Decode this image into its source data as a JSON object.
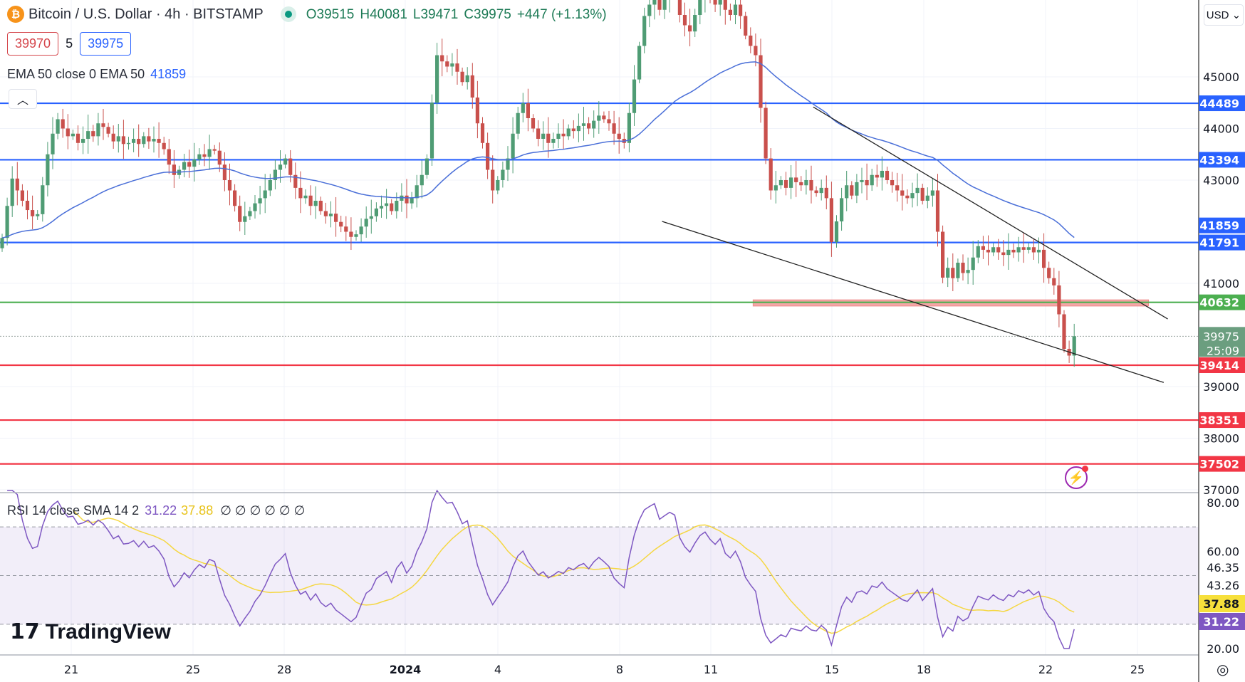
{
  "header": {
    "symbol_icon": "bitcoin-icon",
    "title": "Bitcoin / U.S. Dollar · 4h · BITSTAMP",
    "market_status": "open",
    "open": "O39515",
    "high": "H40081",
    "low": "L39471",
    "close": "C39975",
    "change": "+447 (+1.13%)",
    "bid": "39970",
    "spread": "5",
    "ask": "39975",
    "indicator": "EMA 50 close 0 EMA 50",
    "indicator_value": "41859",
    "collapse_icon": "chevron-up-icon"
  },
  "currency": "USD ⌄",
  "rsi_legend": {
    "label": "RSI 14 close SMA 14 2",
    "rsi": "31.22",
    "sma": "37.88",
    "extra": "∅ ∅ ∅ ∅ ∅ ∅"
  },
  "brand": "TradingView",
  "colors": {
    "up": "#4f9c74",
    "down": "#c9504c",
    "ema": "#4a6fd8",
    "support": "#2962ff",
    "resistance": "#f23645",
    "pivot": "#4caf50",
    "rsi": "#7e57c2",
    "rsi_sma": "#f5d742"
  },
  "chart_data": {
    "type": "candlestick",
    "title": "Bitcoin / U.S. Dollar · 4h · BITSTAMP",
    "y_ticks": [
      45000,
      44000,
      43000,
      41000,
      39000,
      38000,
      37000
    ],
    "y_range": [
      37000,
      46700
    ],
    "x_ticks": [
      "21",
      "25",
      "28",
      "2024",
      "4",
      "8",
      "11",
      "15",
      "18",
      "22",
      "25"
    ],
    "closes": [
      41880,
      42500,
      43030,
      42800,
      42600,
      42420,
      42300,
      42340,
      42900,
      43500,
      43900,
      44180,
      44000,
      43850,
      43900,
      43720,
      43800,
      43950,
      43850,
      44100,
      44030,
      43900,
      43750,
      43850,
      43700,
      43720,
      43800,
      43700,
      43850,
      43750,
      43800,
      43720,
      43600,
      43300,
      43100,
      43200,
      43350,
      43260,
      43400,
      43500,
      43450,
      43600,
      43570,
      43300,
      43000,
      42800,
      42500,
      42190,
      42300,
      42400,
      42550,
      42650,
      42800,
      43000,
      43200,
      43300,
      43420,
      43100,
      42850,
      42650,
      42700,
      42500,
      42600,
      42400,
      42300,
      42350,
      42190,
      42100,
      42000,
      41900,
      41950,
      42100,
      42250,
      42300,
      42450,
      42500,
      42550,
      42400,
      42600,
      42700,
      42550,
      42650,
      42900,
      43100,
      43420,
      44500,
      45420,
      45300,
      45200,
      45260,
      45100,
      44900,
      45030,
      44600,
      44100,
      43720,
      43200,
      42800,
      43000,
      43200,
      43420,
      43900,
      44300,
      44490,
      44200,
      44000,
      43800,
      43900,
      43720,
      43800,
      43900,
      43850,
      44000,
      43950,
      44050,
      44100,
      44000,
      44150,
      44250,
      44180,
      44100,
      43900,
      43800,
      43720,
      44300,
      44950,
      45600,
      46180,
      46400,
      46600,
      46300,
      46500,
      46700,
      46650,
      46200,
      46000,
      45880,
      46200,
      46500,
      46650,
      46500,
      46400,
      46600,
      46300,
      46200,
      46400,
      46180,
      45800,
      45600,
      45420,
      44400,
      43420,
      42800,
      42900,
      43000,
      42850,
      43050,
      42960,
      42900,
      43000,
      42800,
      42750,
      42850,
      42650,
      41800,
      42200,
      42650,
      42900,
      42700,
      42960,
      43000,
      42900,
      43100,
      43050,
      43180,
      43000,
      42900,
      42800,
      42700,
      42650,
      42750,
      42850,
      42600,
      42700,
      42800,
      42000,
      41110,
      41300,
      41100,
      41400,
      41200,
      41260,
      41500,
      41720,
      41650,
      41600,
      41700,
      41600,
      41550,
      41650,
      41600,
      41700,
      41650,
      41700,
      41600,
      41650,
      41300,
      41100,
      40960,
      40400,
      39730,
      39600,
      39975
    ],
    "last_price": {
      "value": "39975",
      "countdown": "25:09"
    },
    "ema": {
      "period": 50,
      "last": "41859"
    },
    "levels": [
      {
        "value": 44489,
        "label": "44489",
        "kind": "support"
      },
      {
        "value": 43394,
        "label": "43394",
        "kind": "support"
      },
      {
        "value": 41791,
        "label": "41791",
        "kind": "support"
      },
      {
        "value": 40632,
        "label": "40632",
        "kind": "pivot"
      },
      {
        "value": 39414,
        "label": "39414",
        "kind": "resistance"
      },
      {
        "value": 38351,
        "label": "38351",
        "kind": "resistance"
      },
      {
        "value": 37502,
        "label": "37502",
        "kind": "resistance"
      }
    ],
    "zone": {
      "from": 40680,
      "to": 40560
    },
    "trendlines": [
      {
        "p1": 44416,
        "p2": 40310
      },
      {
        "p1": 42200,
        "p2": 39080
      }
    ],
    "rsi": {
      "period": 14,
      "sma_period": 14,
      "y_ticks": [
        "80.00",
        "60.00",
        "20.00"
      ],
      "axis_labels": [
        "46.35",
        "43.26"
      ],
      "upper": 70,
      "middle": 50,
      "lower": 30,
      "rsi_label": "31.22",
      "sma_label": "37.88"
    }
  }
}
